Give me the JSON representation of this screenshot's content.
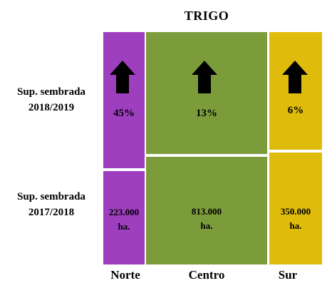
{
  "title": "TRIGO",
  "rows": [
    {
      "line1": "Sup. sembrada",
      "line2": "2018/2019"
    },
    {
      "line1": "Sup. sembrada",
      "line2": "2017/2018"
    }
  ],
  "columns": [
    "Norte",
    "Centro",
    "Sur"
  ],
  "change": {
    "norte": "45%",
    "centro": "13%",
    "sur": "6%"
  },
  "area": {
    "norte": {
      "value": "223.000",
      "unit": "ha."
    },
    "centro": {
      "value": "813.000",
      "unit": "ha."
    },
    "sur": {
      "value": "350.000",
      "unit": "ha."
    }
  },
  "colors": {
    "norte": "#9e3fbf",
    "centro": "#7c9c3b",
    "sur": "#dfbc0b"
  },
  "icons": {
    "increase": "up-arrow-icon"
  }
}
